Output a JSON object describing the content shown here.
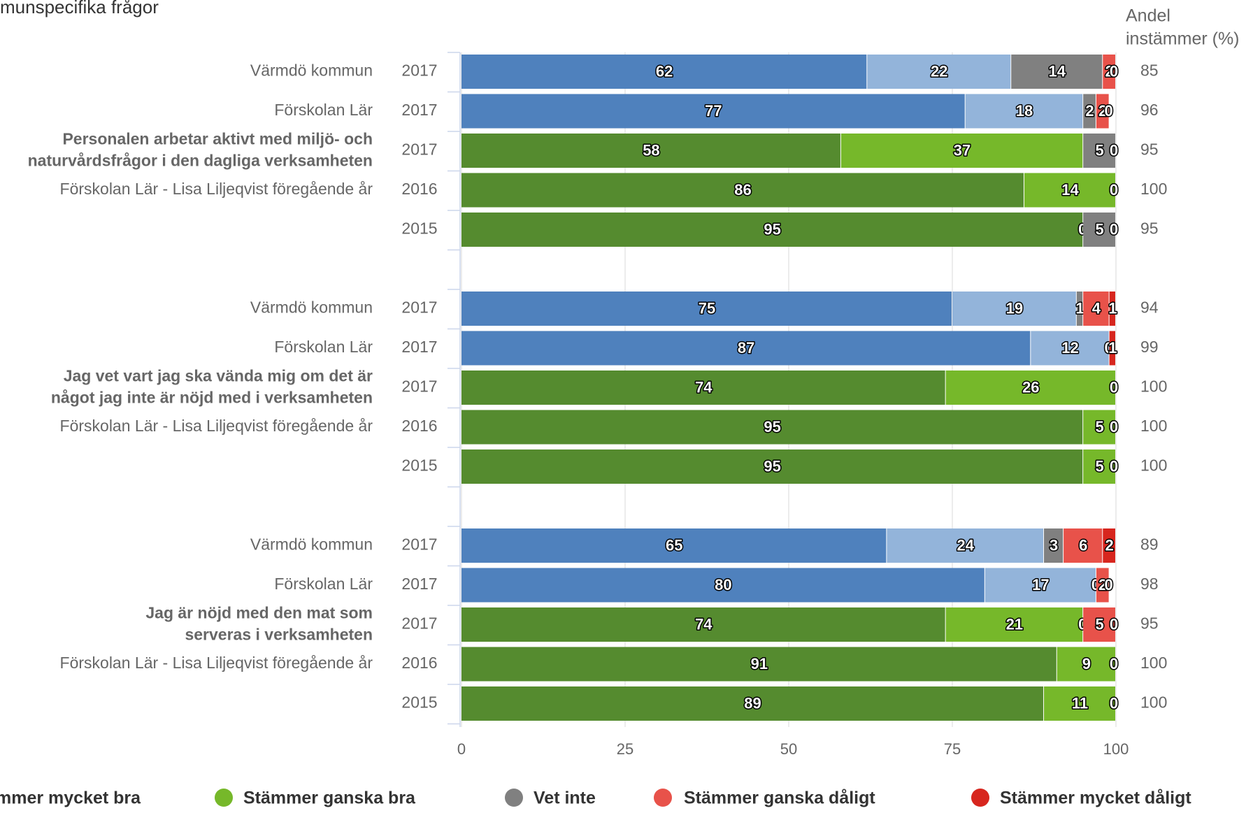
{
  "chart_data": {
    "type": "bar",
    "orientation": "horizontal",
    "stacked": true,
    "title": "munspecifika frågor",
    "right_header": [
      "Andel",
      "instämmer (%)"
    ],
    "x_range": [
      0,
      100
    ],
    "x_ticks": [
      0,
      25,
      50,
      75,
      100
    ],
    "grid": true,
    "legend_position": "bottom",
    "legend": [
      {
        "name": "Stämmer mycket bra",
        "color": "#4f81bd",
        "alt_color": "#558b2f"
      },
      {
        "name": "Stämmer ganska bra",
        "color": "#76b82a",
        "alt_color": "#93b4da"
      },
      {
        "name": "Vet inte",
        "color": "#808080"
      },
      {
        "name": "Stämmer ganska dåligt",
        "color": "#e8524a"
      },
      {
        "name": "Stämmer mycket dåligt",
        "color": "#d7261e"
      }
    ],
    "legend_texts": [
      "mmer mycket bra",
      "Stämmer ganska bra",
      "Vet inte",
      "Stämmer ganska dåligt",
      "Stämmer mycket dåligt"
    ],
    "palette": {
      "blue_dark": "#4f81bd",
      "blue_light": "#93b4da",
      "green_dark": "#558b2f",
      "green_light": "#76b82a",
      "gray": "#808080",
      "red_light": "#e8524a",
      "red_dark": "#d7261e"
    },
    "groups": [
      {
        "question": [
          "Personalen arbetar aktivt med miljö- och",
          "naturvårdsfrågor i den dagliga verksamheten"
        ],
        "rows": [
          {
            "label": "Värmdö kommun",
            "year": "2017",
            "scheme": "blue",
            "values": [
              62,
              22,
              14,
              2,
              0
            ],
            "labels": [
              "62",
              "22",
              "14",
              "2",
              "0"
            ],
            "total": "85"
          },
          {
            "label": "Förskolan Lär",
            "year": "2017",
            "scheme": "blue",
            "values": [
              77,
              18,
              2,
              2,
              0
            ],
            "labels": [
              "77",
              "18",
              "2",
              "2",
              "0"
            ],
            "total": "96"
          },
          {
            "label": "",
            "year": "2017",
            "scheme": "green",
            "question_row": true,
            "values": [
              58,
              37,
              5,
              0,
              0
            ],
            "labels": [
              "58",
              "37",
              "5",
              "",
              "0"
            ],
            "total": "95"
          },
          {
            "label": "Förskolan Lär - Lisa Liljeqvist föregående år",
            "year": "2016",
            "scheme": "green",
            "values": [
              86,
              14,
              0,
              0,
              0
            ],
            "labels": [
              "86",
              "14",
              "",
              "",
              "0"
            ],
            "total": "100"
          },
          {
            "label": "",
            "year": "2015",
            "scheme": "green",
            "values": [
              95,
              0,
              5,
              0,
              0
            ],
            "labels": [
              "95",
              "0",
              "5",
              "",
              "0"
            ],
            "total": "95"
          }
        ]
      },
      {
        "question": [
          "Jag vet vart jag ska vända mig om det är",
          "något jag inte är nöjd med i verksamheten"
        ],
        "rows": [
          {
            "label": "Värmdö kommun",
            "year": "2017",
            "scheme": "blue",
            "values": [
              75,
              19,
              1,
              4,
              1
            ],
            "labels": [
              "75",
              "19",
              "1",
              "4",
              "1"
            ],
            "total": "94"
          },
          {
            "label": "Förskolan Lär",
            "year": "2017",
            "scheme": "blue",
            "values": [
              87,
              12,
              0,
              0,
              1
            ],
            "labels": [
              "87",
              "12",
              "",
              "0",
              "1"
            ],
            "total": "99"
          },
          {
            "label": "",
            "year": "2017",
            "scheme": "green",
            "question_row": true,
            "values": [
              74,
              26,
              0,
              0,
              0
            ],
            "labels": [
              "74",
              "26",
              "",
              "",
              "0"
            ],
            "total": "100"
          },
          {
            "label": "Förskolan Lär - Lisa Liljeqvist föregående år",
            "year": "2016",
            "scheme": "green",
            "values": [
              95,
              5,
              0,
              0,
              0
            ],
            "labels": [
              "95",
              "5",
              "",
              "",
              "0"
            ],
            "total": "100"
          },
          {
            "label": "",
            "year": "2015",
            "scheme": "green",
            "values": [
              95,
              5,
              0,
              0,
              0
            ],
            "labels": [
              "95",
              "5",
              "",
              "",
              "0"
            ],
            "total": "100"
          }
        ]
      },
      {
        "question": [
          "Jag är nöjd med den mat som",
          "serveras i verksamheten"
        ],
        "rows": [
          {
            "label": "Värmdö kommun",
            "year": "2017",
            "scheme": "blue",
            "values": [
              65,
              24,
              3,
              6,
              2
            ],
            "labels": [
              "65",
              "24",
              "3",
              "6",
              "2"
            ],
            "total": "89"
          },
          {
            "label": "Förskolan Lär",
            "year": "2017",
            "scheme": "blue",
            "values": [
              80,
              17,
              0,
              2,
              0
            ],
            "labels": [
              "80",
              "17",
              "0",
              "2",
              "0"
            ],
            "total": "98"
          },
          {
            "label": "",
            "year": "2017",
            "scheme": "green",
            "question_row": true,
            "values": [
              74,
              21,
              0,
              5,
              0
            ],
            "labels": [
              "74",
              "21",
              "0",
              "5",
              "0"
            ],
            "total": "95"
          },
          {
            "label": "Förskolan Lär - Lisa Liljeqvist föregående år",
            "year": "2016",
            "scheme": "green",
            "values": [
              91,
              9,
              0,
              0,
              0
            ],
            "labels": [
              "91",
              "9",
              "",
              "",
              "0"
            ],
            "total": "100"
          },
          {
            "label": "",
            "year": "2015",
            "scheme": "green",
            "values": [
              89,
              11,
              0,
              0,
              0
            ],
            "labels": [
              "89",
              "11",
              "",
              "",
              "0"
            ],
            "total": "100"
          }
        ]
      }
    ]
  }
}
